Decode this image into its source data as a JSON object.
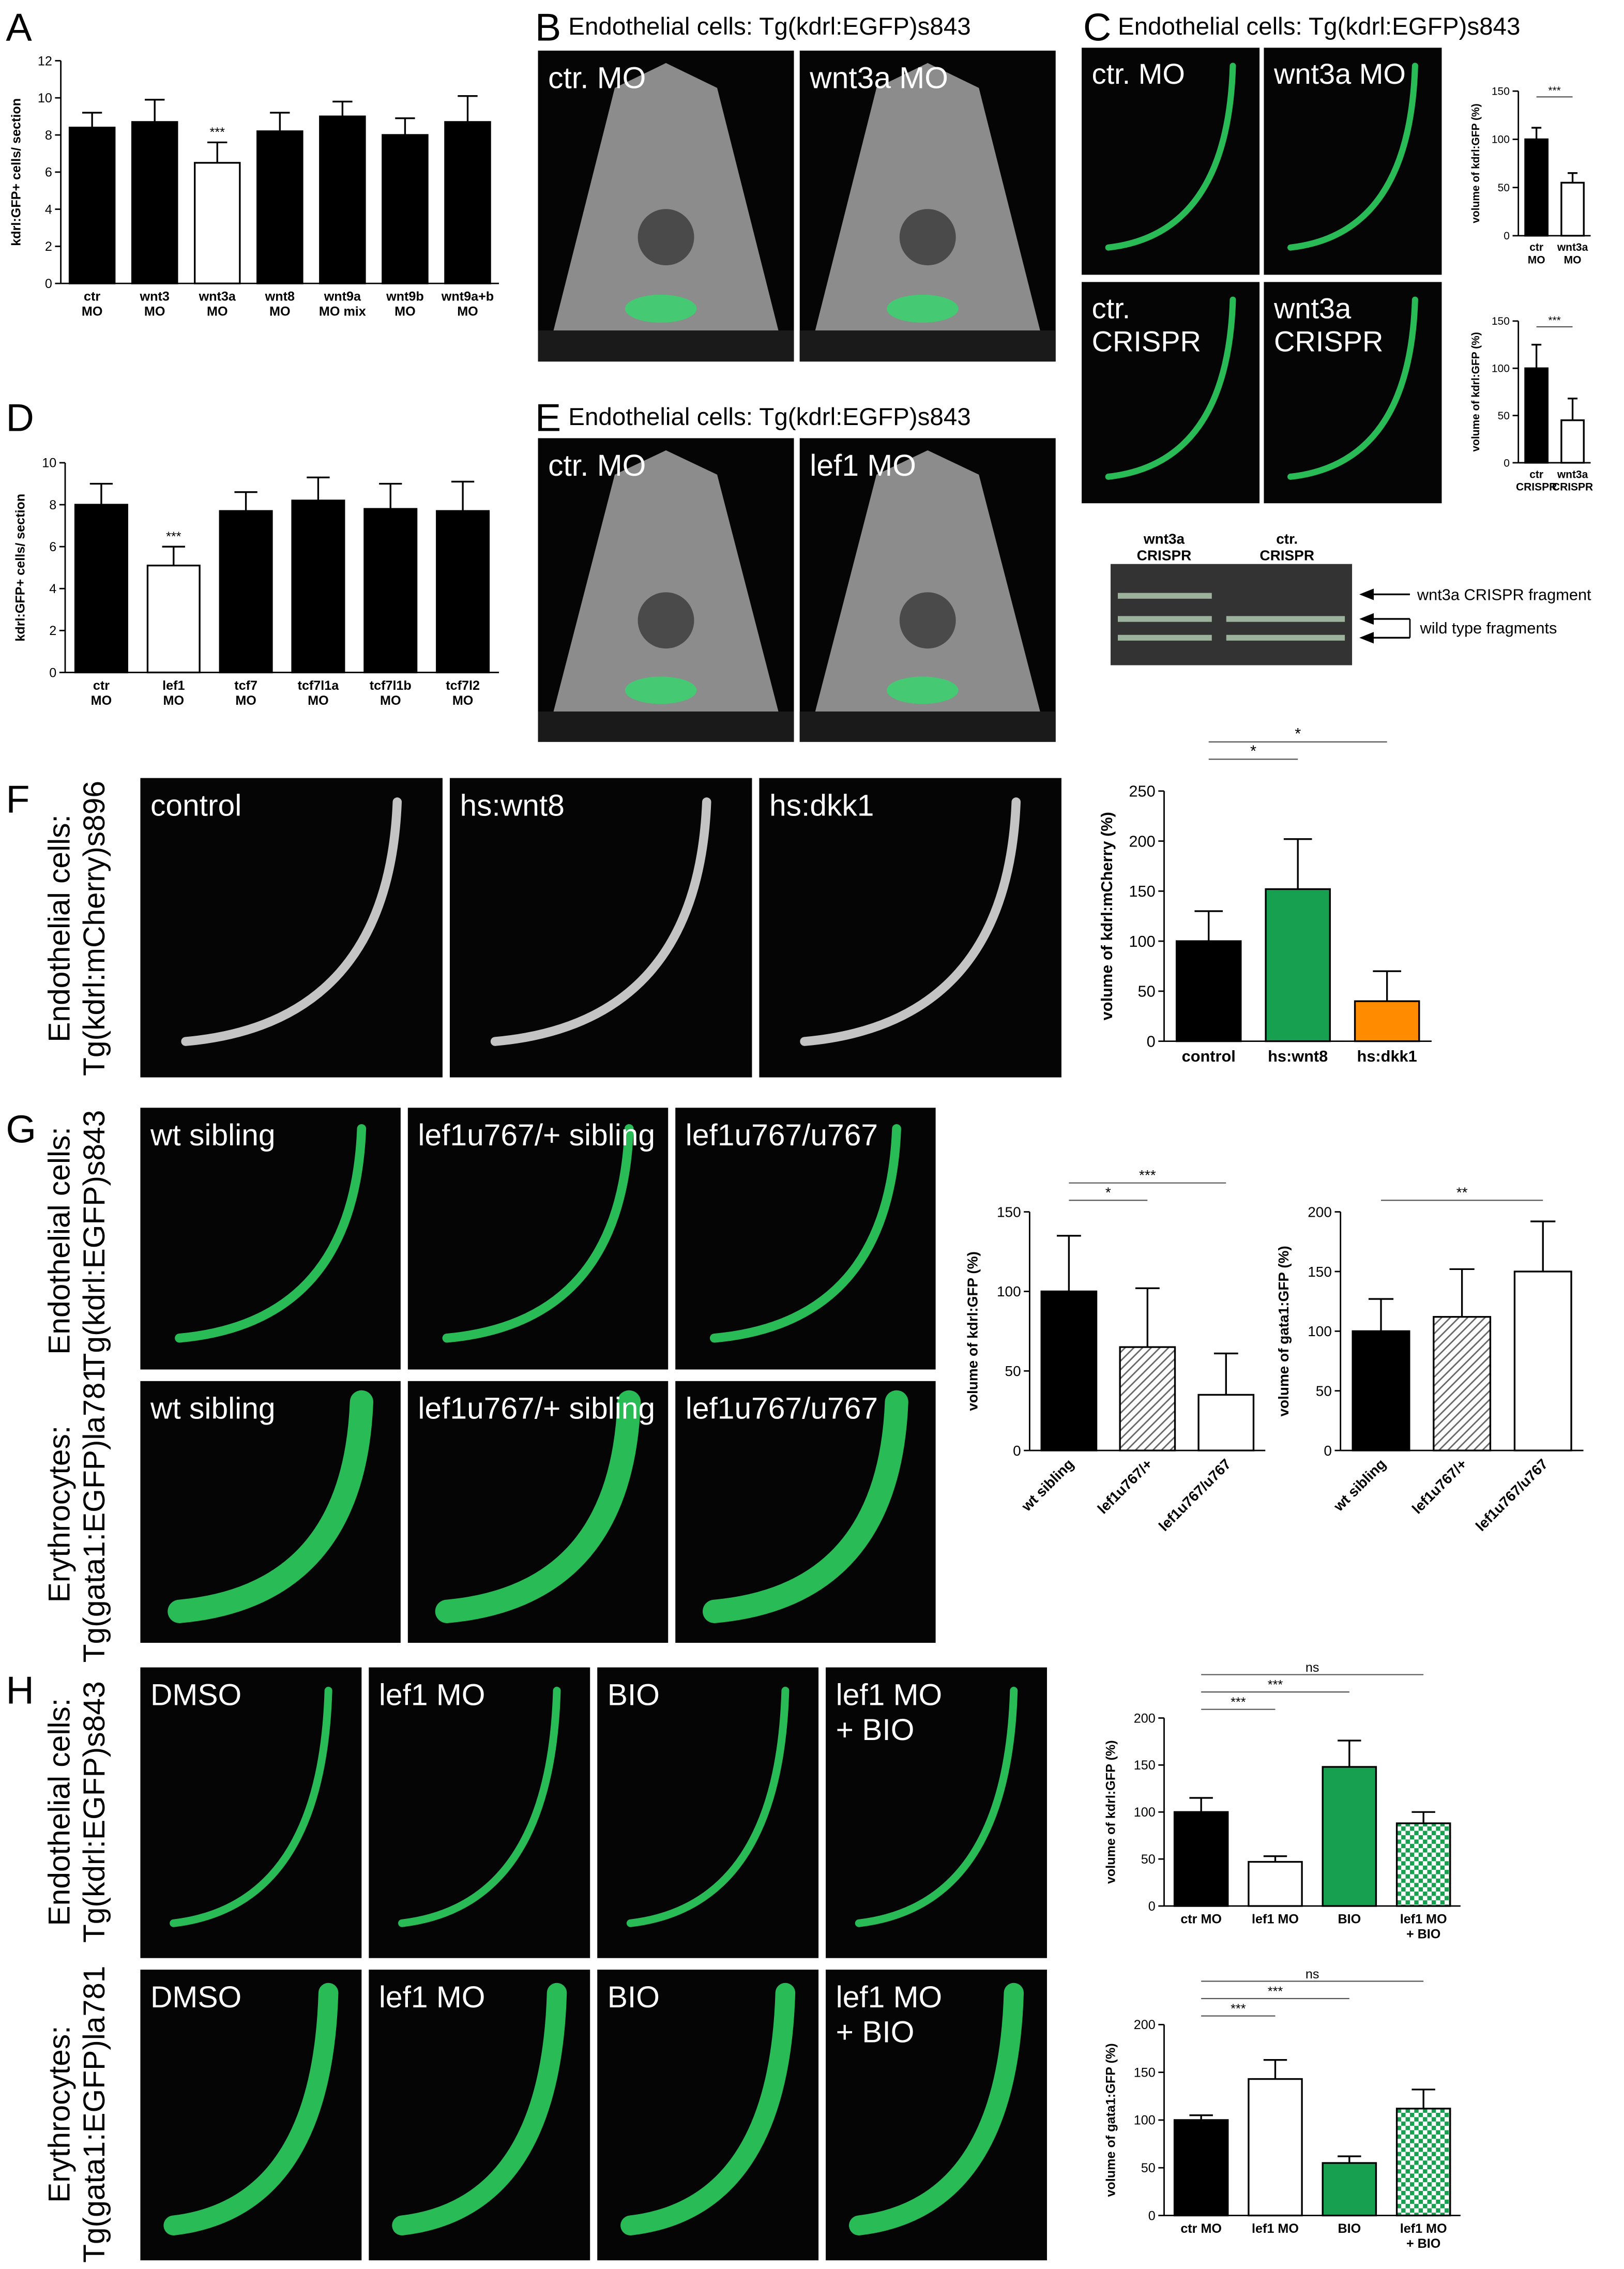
{
  "letters": [
    "A",
    "B",
    "C",
    "D",
    "E",
    "F",
    "G",
    "H"
  ],
  "B": {
    "title": "Endothelial cells: Tg(kdrl:EGFP)s843",
    "images": [
      "ctr. MO",
      "wnt3a MO"
    ]
  },
  "C": {
    "title": "Endothelial cells: Tg(kdrl:EGFP)s843",
    "images": [
      "ctr. MO",
      "wnt3a MO",
      "ctr.\nCRISPR",
      "wnt3a\nCRISPR"
    ],
    "gel_lanes": [
      "wnt3a\nCRISPR",
      "ctr.\nCRISPR"
    ],
    "gel_bands": [
      "wnt3a CRISPR fragment",
      "wild type fragments"
    ]
  },
  "E": {
    "title": "Endothelial cells: Tg(kdrl:EGFP)s843",
    "images": [
      "ctr. MO",
      "lef1 MO"
    ]
  },
  "F": {
    "side": "Endothelial cells:\nTg(kdrl:mCherry)s896",
    "images": [
      "control",
      "hs:wnt8",
      "hs:dkk1"
    ]
  },
  "G": {
    "rows": [
      {
        "side": "Endothelial cells:\nTg(kdrl:EGFP)s843",
        "images": [
          "wt sibling",
          "lef1u767/+ sibling",
          "lef1u767/u767"
        ]
      },
      {
        "side": "Erythrocytes:\nTg(gata1:EGFP)la781",
        "images": [
          "wt sibling",
          "lef1u767/+ sibling",
          "lef1u767/u767"
        ]
      }
    ]
  },
  "H": {
    "rows": [
      {
        "side": "Endothelial cells:\nTg(kdrl:EGFP)s843",
        "images": [
          "DMSO",
          "lef1 MO",
          "BIO",
          "lef1 MO\n+ BIO"
        ]
      },
      {
        "side": "Erythrocytes:\nTg(gata1:EGFP)la781",
        "images": [
          "DMSO",
          "lef1 MO",
          "BIO",
          "lef1 MO\n+ BIO"
        ]
      }
    ]
  },
  "chart_data": [
    {
      "type": "bar",
      "categories": [
        "ctr\nMO",
        "wnt3\nMO",
        "wnt3a\nMO",
        "wnt8\nMO",
        "wnt9a\nMO mix",
        "wnt9b\nMO",
        "wnt9a+b\nMO"
      ],
      "values": [
        8.4,
        8.7,
        6.5,
        8.2,
        9.0,
        8.0,
        8.7
      ],
      "errors": [
        0.8,
        1.2,
        1.1,
        1.0,
        0.8,
        0.9,
        1.4
      ],
      "colors": [
        "#000000",
        "#000000",
        "#ffffff",
        "#000000",
        "#000000",
        "#000000",
        "#000000"
      ],
      "patterns": [
        "solid",
        "solid",
        "solid",
        "solid",
        "solid",
        "solid",
        "solid"
      ],
      "ylabel": "kdrl:GFP+ cells/ section",
      "ylim": [
        0,
        12
      ],
      "yticks": [
        0,
        2,
        4,
        6,
        8,
        10,
        12
      ],
      "annotations": [
        {
          "text": "***",
          "bars": [
            2
          ]
        }
      ]
    },
    {
      "type": "bar",
      "categories": [
        "ctr\nMO",
        "wnt3a\nMO"
      ],
      "values": [
        100,
        55
      ],
      "errors": [
        12,
        10
      ],
      "colors": [
        "#000000",
        "#ffffff"
      ],
      "patterns": [
        "solid",
        "solid"
      ],
      "ylabel": "volume of kdrl:GFP (%)",
      "ylim": [
        0,
        150
      ],
      "yticks": [
        0,
        50,
        100,
        150
      ],
      "annotations": [
        {
          "text": "***",
          "bars": [
            0,
            1
          ]
        }
      ]
    },
    {
      "type": "bar",
      "categories": [
        "ctr\nCRISPR",
        "wnt3a\nCRISPR"
      ],
      "values": [
        100,
        45
      ],
      "errors": [
        25,
        23
      ],
      "colors": [
        "#000000",
        "#ffffff"
      ],
      "patterns": [
        "solid",
        "solid"
      ],
      "ylabel": "volume of kdrl:GFP (%)",
      "ylim": [
        0,
        150
      ],
      "yticks": [
        0,
        50,
        100,
        150
      ],
      "annotations": [
        {
          "text": "***",
          "bars": [
            0,
            1
          ]
        }
      ]
    },
    {
      "type": "bar",
      "categories": [
        "ctr\nMO",
        "lef1\nMO",
        "tcf7\nMO",
        "tcf7l1a\nMO",
        "tcf7l1b\nMO",
        "tcf7l2\nMO"
      ],
      "values": [
        8.0,
        5.1,
        7.7,
        8.2,
        7.8,
        7.7
      ],
      "errors": [
        1.0,
        0.9,
        0.9,
        1.1,
        1.2,
        1.4
      ],
      "colors": [
        "#000000",
        "#ffffff",
        "#000000",
        "#000000",
        "#000000",
        "#000000"
      ],
      "patterns": [
        "solid",
        "solid",
        "solid",
        "solid",
        "solid",
        "solid"
      ],
      "ylabel": "kdrl:GFP+ cells/ section",
      "ylim": [
        0,
        10
      ],
      "yticks": [
        0,
        2,
        4,
        6,
        8,
        10
      ],
      "annotations": [
        {
          "text": "***",
          "bars": [
            1
          ]
        }
      ]
    },
    {
      "type": "bar",
      "categories": [
        "control",
        "hs:wnt8",
        "hs:dkk1"
      ],
      "values": [
        100,
        152,
        40
      ],
      "errors": [
        30,
        50,
        30
      ],
      "colors": [
        "#000000",
        "#17a04f",
        "#ff8c00"
      ],
      "patterns": [
        "solid",
        "solid",
        "solid"
      ],
      "ylabel": "volume of kdrl:mCherry (%)",
      "ylim": [
        0,
        250
      ],
      "yticks": [
        0,
        50,
        100,
        150,
        200,
        250
      ],
      "annotations": [
        {
          "text": "*",
          "bars": [
            0,
            1
          ]
        },
        {
          "text": "*",
          "bars": [
            0,
            2
          ]
        }
      ]
    },
    {
      "type": "bar",
      "categories": [
        "wt sibling",
        "lef1u767/+",
        "lef1u767/u767"
      ],
      "values": [
        100,
        65,
        35
      ],
      "errors": [
        35,
        37,
        26
      ],
      "colors": [
        "#000000",
        "#ffffff",
        "#ffffff"
      ],
      "patterns": [
        "solid",
        "hatch",
        "solid"
      ],
      "ylabel": "volume of kdrl:GFP (%)",
      "ylim": [
        0,
        150
      ],
      "yticks": [
        0,
        50,
        100,
        150
      ],
      "annotations": [
        {
          "text": "*",
          "bars": [
            0,
            1
          ]
        },
        {
          "text": "***",
          "bars": [
            0,
            2
          ]
        }
      ]
    },
    {
      "type": "bar",
      "categories": [
        "wt sibling",
        "lef1u767/+",
        "lef1u767/u767"
      ],
      "values": [
        100,
        112,
        150
      ],
      "errors": [
        27,
        40,
        42
      ],
      "colors": [
        "#000000",
        "#ffffff",
        "#ffffff"
      ],
      "patterns": [
        "solid",
        "hatch",
        "solid"
      ],
      "ylabel": "volume of gata1:GFP (%)",
      "ylim": [
        0,
        200
      ],
      "yticks": [
        0,
        50,
        100,
        150,
        200
      ],
      "annotations": [
        {
          "text": "**",
          "bars": [
            0,
            2
          ]
        }
      ]
    },
    {
      "type": "bar",
      "categories": [
        "ctr MO",
        "lef1 MO",
        "BIO",
        "lef1 MO\n+ BIO"
      ],
      "values": [
        100,
        47,
        148,
        88
      ],
      "errors": [
        15,
        6,
        28,
        12
      ],
      "colors": [
        "#000000",
        "#ffffff",
        "#17a04f",
        "#17a04f"
      ],
      "patterns": [
        "solid",
        "solid",
        "solid",
        "check"
      ],
      "ylabel": "volume of kdrl:GFP (%)",
      "ylim": [
        0,
        200
      ],
      "yticks": [
        0,
        50,
        100,
        150,
        200
      ],
      "annotations": [
        {
          "text": "***",
          "bars": [
            0,
            1
          ]
        },
        {
          "text": "***",
          "bars": [
            0,
            2
          ]
        },
        {
          "text": "ns",
          "bars": [
            0,
            3
          ]
        }
      ]
    },
    {
      "type": "bar",
      "categories": [
        "ctr MO",
        "lef1 MO",
        "BIO",
        "lef1 MO\n+ BIO"
      ],
      "values": [
        100,
        143,
        55,
        112
      ],
      "errors": [
        5,
        20,
        7,
        20
      ],
      "colors": [
        "#000000",
        "#ffffff",
        "#17a04f",
        "#17a04f"
      ],
      "patterns": [
        "solid",
        "solid",
        "solid",
        "check"
      ],
      "ylabel": "volume of gata1:GFP (%)",
      "ylim": [
        0,
        200
      ],
      "yticks": [
        0,
        50,
        100,
        150,
        200
      ],
      "annotations": [
        {
          "text": "***",
          "bars": [
            0,
            1
          ]
        },
        {
          "text": "***",
          "bars": [
            0,
            2
          ]
        },
        {
          "text": "ns",
          "bars": [
            0,
            3
          ]
        }
      ]
    }
  ]
}
